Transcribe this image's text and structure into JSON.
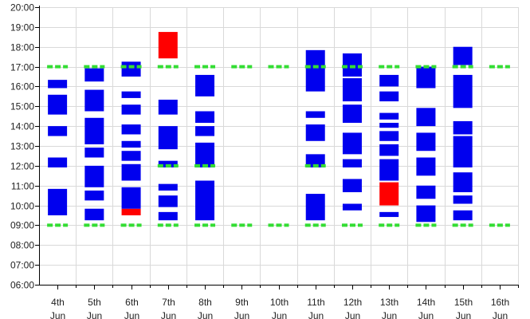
{
  "chart_data": {
    "type": "bar",
    "subtype": "floating-timeline",
    "title": "",
    "xlabel": "",
    "ylabel": "",
    "grid": true,
    "ylim": [
      "06:00",
      "20:00"
    ],
    "y_ticks": [
      "06:00",
      "07:00",
      "08:00",
      "09:00",
      "10:00",
      "11:00",
      "12:00",
      "13:00",
      "14:00",
      "15:00",
      "16:00",
      "17:00",
      "18:00",
      "19:00",
      "20:00"
    ],
    "categories": [
      {
        "line1": "4th",
        "line2": "Jun"
      },
      {
        "line1": "5th",
        "line2": "Jun"
      },
      {
        "line1": "6th",
        "line2": "Jun"
      },
      {
        "line1": "7th",
        "line2": "Jun"
      },
      {
        "line1": "8th",
        "line2": "Jun"
      },
      {
        "line1": "9th",
        "line2": "Jun"
      },
      {
        "line1": "10th",
        "line2": "Jun"
      },
      {
        "line1": "11th",
        "line2": "Jun"
      },
      {
        "line1": "12th",
        "line2": "Jun"
      },
      {
        "line1": "13th",
        "line2": "Jun"
      },
      {
        "line1": "14th",
        "line2": "Jun"
      },
      {
        "line1": "15th",
        "line2": "Jun"
      },
      {
        "line1": "16th",
        "line2": "Jun"
      }
    ],
    "colors": {
      "blue": "#0000ee",
      "red": "#ff0000",
      "marker": "#33dd33",
      "grid": "#d9d9d9",
      "axis": "#000000"
    },
    "blocks": [
      {
        "day": 0,
        "start": "09:30",
        "end": "10:50",
        "color": "blue"
      },
      {
        "day": 0,
        "start": "11:55",
        "end": "12:25",
        "color": "blue"
      },
      {
        "day": 0,
        "start": "13:30",
        "end": "14:00",
        "color": "blue"
      },
      {
        "day": 0,
        "start": "14:35",
        "end": "15:35",
        "color": "blue"
      },
      {
        "day": 0,
        "start": "15:55",
        "end": "16:20",
        "color": "blue"
      },
      {
        "day": 1,
        "start": "09:15",
        "end": "09:50",
        "color": "blue"
      },
      {
        "day": 1,
        "start": "10:15",
        "end": "10:45",
        "color": "blue"
      },
      {
        "day": 1,
        "start": "10:55",
        "end": "12:00",
        "color": "blue"
      },
      {
        "day": 1,
        "start": "12:25",
        "end": "12:55",
        "color": "blue"
      },
      {
        "day": 1,
        "start": "13:05",
        "end": "14:25",
        "color": "blue"
      },
      {
        "day": 1,
        "start": "14:45",
        "end": "15:50",
        "color": "blue"
      },
      {
        "day": 1,
        "start": "16:15",
        "end": "16:55",
        "color": "blue"
      },
      {
        "day": 2,
        "start": "09:30",
        "end": "09:50",
        "color": "red"
      },
      {
        "day": 2,
        "start": "09:50",
        "end": "10:55",
        "color": "blue"
      },
      {
        "day": 2,
        "start": "11:15",
        "end": "12:05",
        "color": "blue"
      },
      {
        "day": 2,
        "start": "12:15",
        "end": "12:45",
        "color": "blue"
      },
      {
        "day": 2,
        "start": "12:55",
        "end": "13:15",
        "color": "blue"
      },
      {
        "day": 2,
        "start": "13:35",
        "end": "14:05",
        "color": "blue"
      },
      {
        "day": 2,
        "start": "14:35",
        "end": "15:05",
        "color": "blue"
      },
      {
        "day": 2,
        "start": "15:25",
        "end": "15:45",
        "color": "blue"
      },
      {
        "day": 2,
        "start": "16:30",
        "end": "17:15",
        "color": "blue"
      },
      {
        "day": 3,
        "start": "09:15",
        "end": "09:40",
        "color": "blue"
      },
      {
        "day": 3,
        "start": "09:55",
        "end": "10:30",
        "color": "blue"
      },
      {
        "day": 3,
        "start": "10:45",
        "end": "11:05",
        "color": "blue"
      },
      {
        "day": 3,
        "start": "11:55",
        "end": "12:15",
        "color": "blue"
      },
      {
        "day": 3,
        "start": "12:50",
        "end": "14:00",
        "color": "blue"
      },
      {
        "day": 3,
        "start": "14:35",
        "end": "15:20",
        "color": "blue"
      },
      {
        "day": 3,
        "start": "17:25",
        "end": "18:45",
        "color": "red"
      },
      {
        "day": 4,
        "start": "09:15",
        "end": "11:15",
        "color": "blue"
      },
      {
        "day": 4,
        "start": "11:55",
        "end": "13:10",
        "color": "blue"
      },
      {
        "day": 4,
        "start": "13:30",
        "end": "14:00",
        "color": "blue"
      },
      {
        "day": 4,
        "start": "14:10",
        "end": "14:45",
        "color": "blue"
      },
      {
        "day": 4,
        "start": "15:30",
        "end": "16:35",
        "color": "blue"
      },
      {
        "day": 7,
        "start": "09:15",
        "end": "10:35",
        "color": "blue"
      },
      {
        "day": 7,
        "start": "11:55",
        "end": "12:35",
        "color": "blue"
      },
      {
        "day": 7,
        "start": "13:15",
        "end": "14:05",
        "color": "blue"
      },
      {
        "day": 7,
        "start": "14:25",
        "end": "14:45",
        "color": "blue"
      },
      {
        "day": 7,
        "start": "15:45",
        "end": "17:50",
        "color": "blue"
      },
      {
        "day": 8,
        "start": "09:45",
        "end": "10:05",
        "color": "blue"
      },
      {
        "day": 8,
        "start": "10:40",
        "end": "11:20",
        "color": "blue"
      },
      {
        "day": 8,
        "start": "11:55",
        "end": "12:20",
        "color": "blue"
      },
      {
        "day": 8,
        "start": "12:35",
        "end": "13:40",
        "color": "blue"
      },
      {
        "day": 8,
        "start": "14:10",
        "end": "15:05",
        "color": "blue"
      },
      {
        "day": 8,
        "start": "15:15",
        "end": "16:25",
        "color": "blue"
      },
      {
        "day": 8,
        "start": "16:30",
        "end": "17:40",
        "color": "blue"
      },
      {
        "day": 9,
        "start": "10:00",
        "end": "11:10",
        "color": "red"
      },
      {
        "day": 9,
        "start": "09:25",
        "end": "09:40",
        "color": "blue"
      },
      {
        "day": 9,
        "start": "11:15",
        "end": "12:20",
        "color": "blue"
      },
      {
        "day": 9,
        "start": "12:30",
        "end": "13:05",
        "color": "blue"
      },
      {
        "day": 9,
        "start": "13:15",
        "end": "13:45",
        "color": "blue"
      },
      {
        "day": 9,
        "start": "13:55",
        "end": "14:10",
        "color": "blue"
      },
      {
        "day": 9,
        "start": "14:20",
        "end": "14:40",
        "color": "blue"
      },
      {
        "day": 9,
        "start": "15:15",
        "end": "15:45",
        "color": "blue"
      },
      {
        "day": 9,
        "start": "16:00",
        "end": "16:35",
        "color": "blue"
      },
      {
        "day": 10,
        "start": "09:10",
        "end": "10:00",
        "color": "blue"
      },
      {
        "day": 10,
        "start": "10:20",
        "end": "11:00",
        "color": "blue"
      },
      {
        "day": 10,
        "start": "11:30",
        "end": "12:25",
        "color": "blue"
      },
      {
        "day": 10,
        "start": "12:45",
        "end": "13:40",
        "color": "blue"
      },
      {
        "day": 10,
        "start": "14:00",
        "end": "14:55",
        "color": "blue"
      },
      {
        "day": 10,
        "start": "15:55",
        "end": "17:00",
        "color": "blue"
      },
      {
        "day": 11,
        "start": "09:15",
        "end": "09:45",
        "color": "blue"
      },
      {
        "day": 11,
        "start": "10:05",
        "end": "10:30",
        "color": "blue"
      },
      {
        "day": 11,
        "start": "10:40",
        "end": "11:40",
        "color": "blue"
      },
      {
        "day": 11,
        "start": "11:55",
        "end": "13:30",
        "color": "blue"
      },
      {
        "day": 11,
        "start": "13:35",
        "end": "14:15",
        "color": "blue"
      },
      {
        "day": 11,
        "start": "14:55",
        "end": "16:35",
        "color": "blue"
      },
      {
        "day": 11,
        "start": "17:05",
        "end": "18:00",
        "color": "blue"
      }
    ],
    "markers": [
      {
        "day": 0,
        "times": [
          "09:00",
          "17:00"
        ]
      },
      {
        "day": 1,
        "times": [
          "09:00",
          "17:00"
        ]
      },
      {
        "day": 2,
        "times": [
          "09:00",
          "17:00"
        ]
      },
      {
        "day": 3,
        "times": [
          "09:00",
          "12:00",
          "17:00"
        ]
      },
      {
        "day": 4,
        "times": [
          "09:00",
          "12:00",
          "17:00"
        ]
      },
      {
        "day": 5,
        "times": [
          "09:00",
          "17:00"
        ]
      },
      {
        "day": 6,
        "times": [
          "09:00",
          "17:00"
        ]
      },
      {
        "day": 7,
        "times": [
          "09:00",
          "12:00",
          "17:00"
        ]
      },
      {
        "day": 8,
        "times": [
          "09:00",
          "17:00"
        ]
      },
      {
        "day": 9,
        "times": [
          "09:00",
          "17:00"
        ]
      },
      {
        "day": 10,
        "times": [
          "09:00",
          "17:00"
        ]
      },
      {
        "day": 11,
        "times": [
          "09:00",
          "17:00"
        ]
      },
      {
        "day": 12,
        "times": [
          "09:00",
          "17:00"
        ]
      }
    ]
  }
}
